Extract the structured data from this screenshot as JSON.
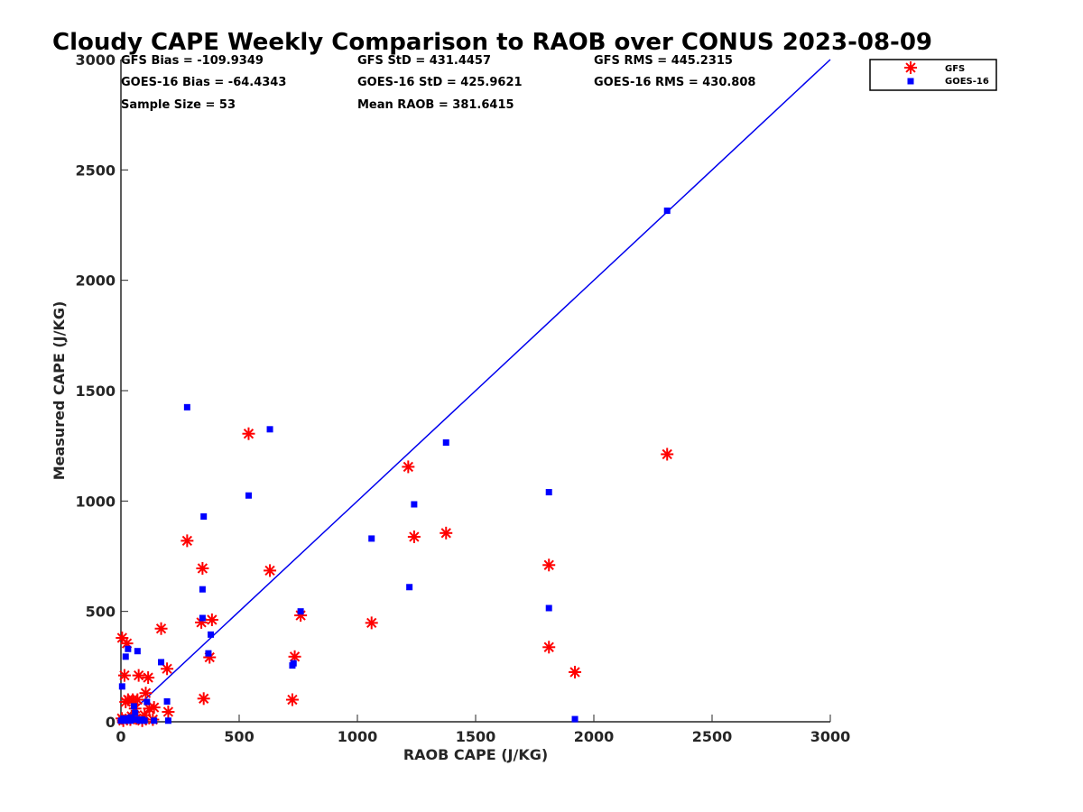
{
  "chart_data": {
    "type": "scatter",
    "title": "Cloudy CAPE Weekly Comparison to RAOB over CONUS 2023-08-09",
    "xlabel": "RAOB CAPE (J/KG)",
    "ylabel": "Measured CAPE (J/KG)",
    "xlim": [
      0,
      3000
    ],
    "ylim": [
      0,
      3000
    ],
    "xticks": [
      0,
      500,
      1000,
      1500,
      2000,
      2500,
      3000
    ],
    "yticks": [
      0,
      500,
      1000,
      1500,
      2000,
      2500,
      3000
    ],
    "grid": false,
    "legend_position": "top-right",
    "stats": [
      "GFS Bias = -109.9349",
      "GFS StD = 431.4457",
      "GFS RMS = 445.2315",
      "GOES-16 Bias = -64.4343",
      "GOES-16 StD = 425.9621",
      "GOES-16 RMS = 430.808",
      "Sample Size = 53",
      "Mean RAOB = 381.6415"
    ],
    "reference_line": {
      "x": [
        0,
        3000
      ],
      "y": [
        0,
        3000
      ],
      "color": "#0000ee"
    },
    "series": [
      {
        "name": "GFS",
        "marker": "asterisk",
        "color": "#ff0000",
        "points": [
          [
            2310,
            1212
          ],
          [
            1920,
            225
          ],
          [
            1810,
            710
          ],
          [
            1810,
            338
          ],
          [
            1375,
            855
          ],
          [
            1240,
            838
          ],
          [
            1215,
            1155
          ],
          [
            1060,
            448
          ],
          [
            760,
            482
          ],
          [
            735,
            295
          ],
          [
            725,
            100
          ],
          [
            630,
            685
          ],
          [
            540,
            1305
          ],
          [
            385,
            462
          ],
          [
            375,
            292
          ],
          [
            350,
            105
          ],
          [
            345,
            695
          ],
          [
            340,
            450
          ],
          [
            280,
            820
          ],
          [
            195,
            240
          ],
          [
            200,
            45
          ],
          [
            170,
            422
          ],
          [
            140,
            65
          ],
          [
            115,
            200
          ],
          [
            105,
            130
          ],
          [
            100,
            30
          ],
          [
            90,
            5
          ],
          [
            75,
            210
          ],
          [
            70,
            100
          ],
          [
            60,
            60
          ],
          [
            50,
            100
          ],
          [
            45,
            25
          ],
          [
            30,
            100
          ],
          [
            25,
            355
          ],
          [
            20,
            90
          ],
          [
            15,
            210
          ],
          [
            10,
            5
          ],
          [
            5,
            380
          ],
          [
            4,
            15
          ],
          [
            40,
            10
          ],
          [
            65,
            15
          ],
          [
            120,
            60
          ],
          [
            135,
            10
          ]
        ]
      },
      {
        "name": "GOES-16",
        "marker": "square",
        "color": "#0000ff",
        "points": [
          [
            2310,
            2315
          ],
          [
            1920,
            12
          ],
          [
            1810,
            1040
          ],
          [
            1810,
            515
          ],
          [
            1375,
            1265
          ],
          [
            1240,
            985
          ],
          [
            1220,
            610
          ],
          [
            1060,
            830
          ],
          [
            760,
            500
          ],
          [
            730,
            265
          ],
          [
            725,
            255
          ],
          [
            630,
            1325
          ],
          [
            540,
            1025
          ],
          [
            380,
            395
          ],
          [
            370,
            310
          ],
          [
            350,
            930
          ],
          [
            345,
            600
          ],
          [
            345,
            470
          ],
          [
            280,
            1425
          ],
          [
            200,
            5
          ],
          [
            195,
            92
          ],
          [
            170,
            270
          ],
          [
            140,
            5
          ],
          [
            110,
            90
          ],
          [
            100,
            5
          ],
          [
            90,
            10
          ],
          [
            70,
            320
          ],
          [
            60,
            40
          ],
          [
            55,
            70
          ],
          [
            45,
            20
          ],
          [
            40,
            5
          ],
          [
            30,
            330
          ],
          [
            20,
            295
          ],
          [
            10,
            15
          ],
          [
            5,
            160
          ],
          [
            0,
            5
          ],
          [
            15,
            5
          ],
          [
            25,
            10
          ],
          [
            35,
            15
          ],
          [
            65,
            10
          ],
          [
            80,
            5
          ]
        ]
      }
    ]
  }
}
